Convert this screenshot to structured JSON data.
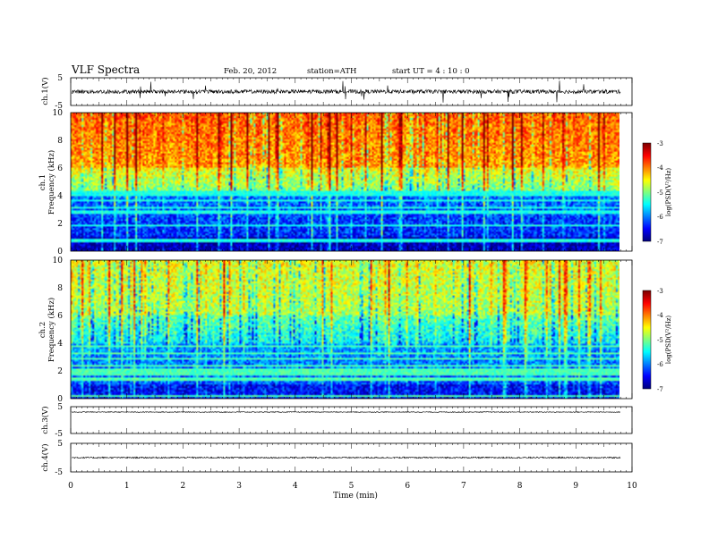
{
  "header": {
    "title": "VLF  Spectra",
    "date": "Feb. 20, 2012",
    "station": "station=ATH",
    "start": "start  UT  =   4  : 10 : 0"
  },
  "chart_data": {
    "type": "heatmap",
    "xlabel": "Time  (min)",
    "xlim": [
      0,
      10
    ],
    "x_ticks": [
      "0",
      "1",
      "2",
      "3",
      "4",
      "5",
      "6",
      "7",
      "8",
      "9",
      "10"
    ],
    "data_end_min": 9.8,
    "panels": [
      {
        "kind": "waveform",
        "ylabel": "ch.1(V)",
        "ylim": [
          -5,
          5
        ],
        "y_ticks": [
          "5",
          "-5"
        ],
        "level": 0,
        "noise": 0.7,
        "spike_density": 0.35
      },
      {
        "kind": "spectrogram",
        "ylabel_1": "ch.1",
        "ylabel_2": "Frequency  (kHz)",
        "ylim": [
          0,
          10
        ],
        "y_ticks": [
          "0",
          "2",
          "4",
          "6",
          "8",
          "10"
        ],
        "colorbar": {
          "title": "log(PSD(V²/Hz)",
          "range": [
            -7,
            -3
          ],
          "ticks": [
            "-3",
            "-4",
            "-5",
            "-6",
            "-7"
          ]
        },
        "typical_log_psd": {
          "band_0_1_kHz": -6.9,
          "band_1_4_kHz": -6.5,
          "band_4_6_kHz": -5.3,
          "band_6_10_kHz": -4.3
        },
        "sferic_strength": 1.0
      },
      {
        "kind": "spectrogram",
        "ylabel_1": "ch.2",
        "ylabel_2": "Frequency  (kHz)",
        "ylim": [
          0,
          10
        ],
        "y_ticks": [
          "0",
          "2",
          "4",
          "6",
          "8",
          "10"
        ],
        "colorbar": {
          "title": "log(PSD(V²/Hz)",
          "range": [
            -7,
            -3
          ],
          "ticks": [
            "-3",
            "-4",
            "-5",
            "-6",
            "-7"
          ]
        },
        "typical_log_psd": {
          "band_0_1_kHz": -6.6,
          "band_1_4_kHz": -6.3,
          "band_4_6_kHz": -5.7,
          "band_6_10_kHz": -5.0
        },
        "sferic_strength": 0.8
      },
      {
        "kind": "waveform",
        "ylabel": "ch.3(V)",
        "ylim": [
          -5,
          5
        ],
        "y_ticks": [
          "5",
          "-5"
        ],
        "level": 3.0,
        "noise": 0.15,
        "spike_density": 0.0
      },
      {
        "kind": "waveform",
        "ylabel": "ch.4(V)",
        "ylim": [
          -5,
          5
        ],
        "y_ticks": [
          "5",
          "-5"
        ],
        "level": 0,
        "noise": 0.25,
        "spike_density": 0.0
      }
    ]
  }
}
